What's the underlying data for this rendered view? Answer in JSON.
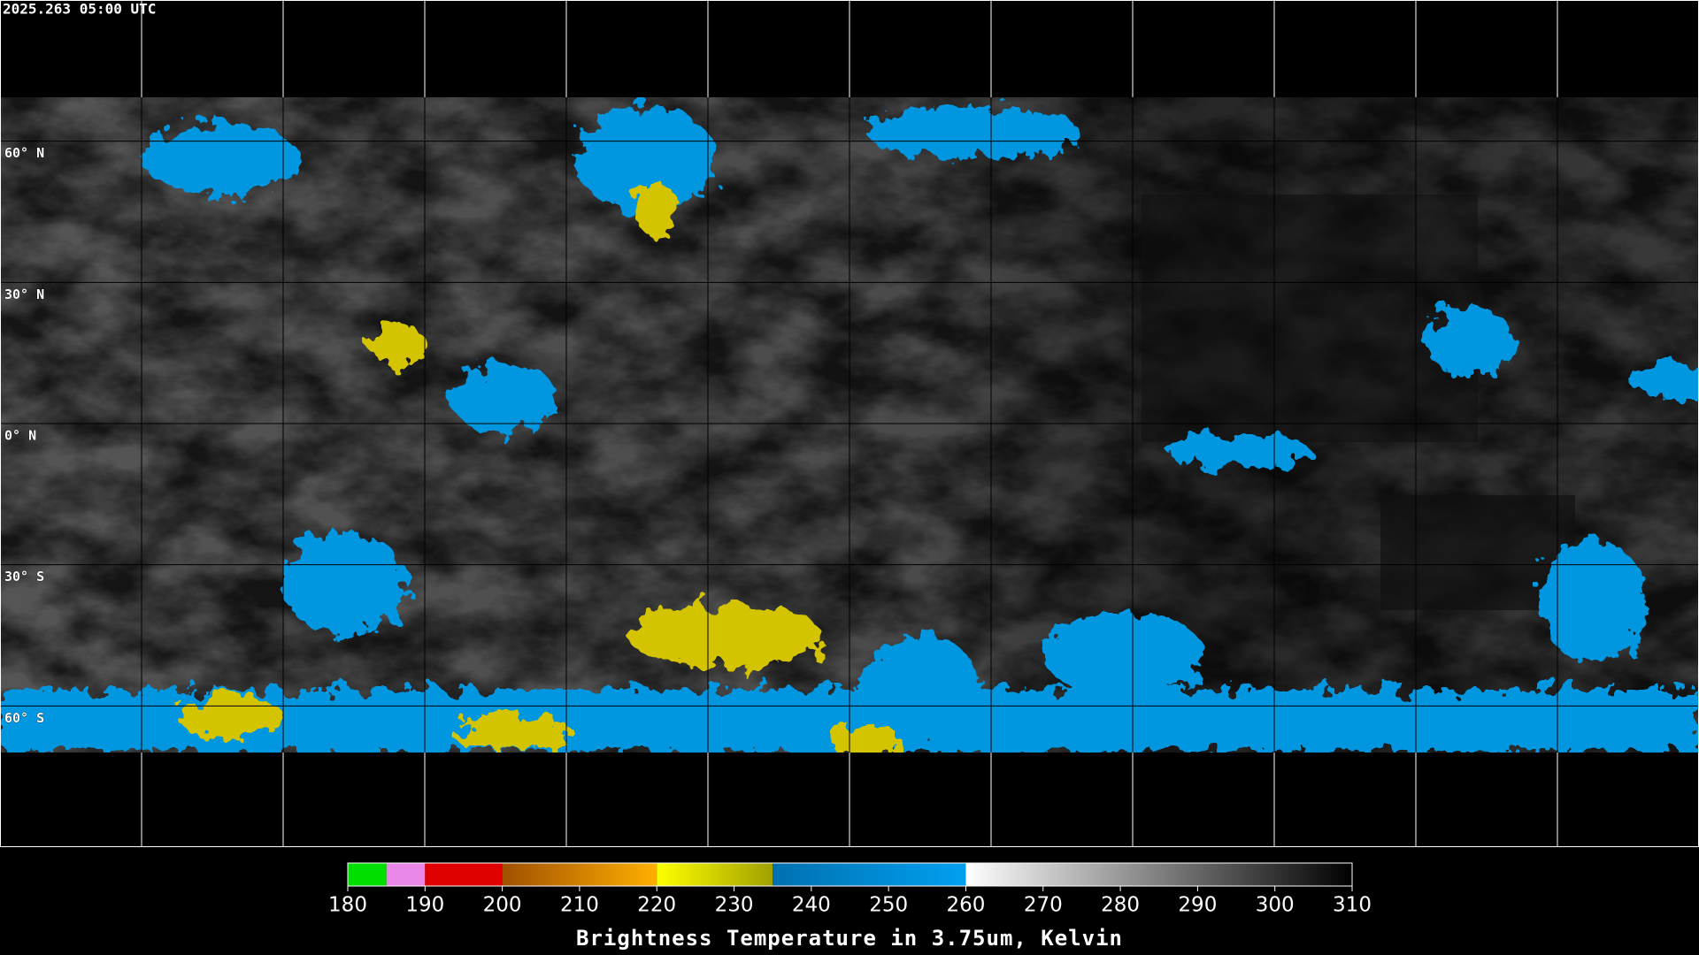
{
  "map": {
    "timestamp": "2025.263 05:00 UTC",
    "latlim": [
      -90,
      90
    ],
    "latitudes": [
      {
        "value": 60,
        "label": "60° N"
      },
      {
        "value": 30,
        "label": "30° N"
      },
      {
        "value": 0,
        "label": "0° N"
      },
      {
        "value": -30,
        "label": "30° S"
      },
      {
        "value": -60,
        "label": "60° S"
      }
    ]
  },
  "colorbar": {
    "title": "Brightness Temperature in 3.75um, Kelvin",
    "xlim": [
      180,
      310
    ],
    "xticks": [
      180,
      190,
      200,
      210,
      220,
      230,
      240,
      250,
      260,
      270,
      280,
      290,
      300,
      310
    ],
    "segments": [
      {
        "from": 180,
        "to": 185,
        "colors": [
          "#00e000",
          "#00e000"
        ]
      },
      {
        "from": 185,
        "to": 190,
        "colors": [
          "#e887e8",
          "#e887e8"
        ]
      },
      {
        "from": 190,
        "to": 200,
        "colors": [
          "#e00000",
          "#e00000"
        ]
      },
      {
        "from": 200,
        "to": 220,
        "colors": [
          "#a05000",
          "#ffb000"
        ]
      },
      {
        "from": 220,
        "to": 235,
        "colors": [
          "#ffff00",
          "#a0a000"
        ]
      },
      {
        "from": 235,
        "to": 260,
        "colors": [
          "#0070b0",
          "#00a0f0"
        ]
      },
      {
        "from": 260,
        "to": 310,
        "colors": [
          "#ffffff",
          "#000000"
        ]
      }
    ]
  }
}
